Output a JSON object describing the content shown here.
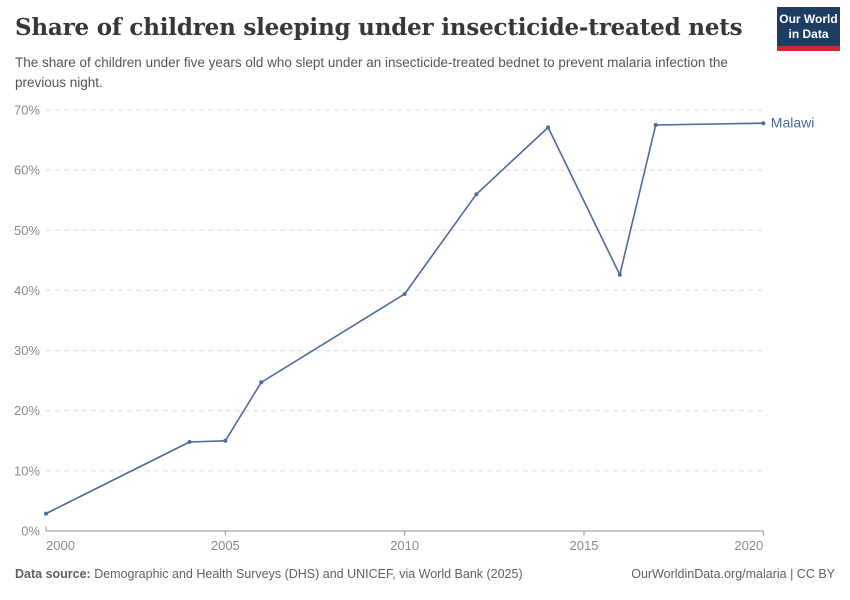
{
  "header": {
    "logo": {
      "line1": "Our World",
      "line2": "in Data",
      "bg_color": "#1d3d63",
      "accent_color": "#d0262e"
    }
  },
  "chart_data": {
    "type": "line",
    "title": "Share of children sleeping under insecticide-treated nets",
    "subtitle": "The share of children under five years old who slept under an insecticide-treated bednet to prevent malaria infection the previous night.",
    "xlabel": "",
    "ylabel": "",
    "xlim": [
      2000,
      2020
    ],
    "ylim": [
      0,
      70
    ],
    "grid": "horizontal-dashed",
    "legend_position": "end-of-line-label",
    "x_ticks": [
      {
        "value": 2000,
        "label": "2000"
      },
      {
        "value": 2005,
        "label": "2005"
      },
      {
        "value": 2010,
        "label": "2010"
      },
      {
        "value": 2015,
        "label": "2015"
      },
      {
        "value": 2020,
        "label": "2020"
      }
    ],
    "y_ticks": [
      {
        "value": 0,
        "label": "0%"
      },
      {
        "value": 10,
        "label": "10%"
      },
      {
        "value": 20,
        "label": "20%"
      },
      {
        "value": 30,
        "label": "30%"
      },
      {
        "value": 40,
        "label": "40%"
      },
      {
        "value": 50,
        "label": "50%"
      },
      {
        "value": 60,
        "label": "60%"
      },
      {
        "value": 70,
        "label": "70%"
      }
    ],
    "series": [
      {
        "name": "Malawi",
        "color": "#4C6A9C",
        "points": [
          [
            2000,
            2.9
          ],
          [
            2004,
            14.8
          ],
          [
            2005,
            15.0
          ],
          [
            2006,
            24.7
          ],
          [
            2010,
            39.4
          ],
          [
            2012,
            56.0
          ],
          [
            2014,
            67.1
          ],
          [
            2016,
            42.6
          ],
          [
            2017,
            67.5
          ],
          [
            2020,
            67.8
          ]
        ]
      }
    ]
  },
  "footer": {
    "source_label": "Data source:",
    "source_text": " Demographic and Health Surveys (DHS) and UNICEF, via World Bank (2025)",
    "attribution": "OurWorldinData.org/malaria | CC BY"
  }
}
